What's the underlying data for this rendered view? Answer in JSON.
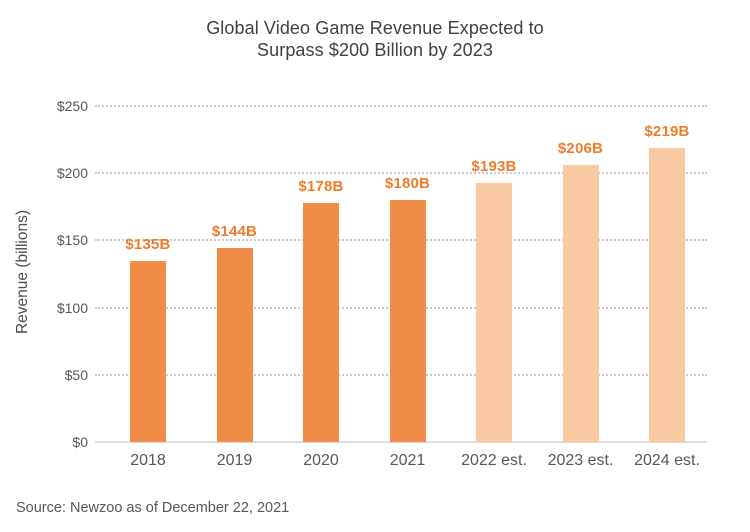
{
  "title": {
    "line1": "Global Video Game Revenue Expected to",
    "line2": "Surpass $200 Billion by 2023"
  },
  "y_axis_label": "Revenue (billions)",
  "source_note": "Source: Newzoo as of December 22, 2021",
  "chart_data": {
    "type": "bar",
    "title": "Global Video Game Revenue Expected to Surpass $200 Billion by 2023",
    "xlabel": "",
    "ylabel": "Revenue (billions)",
    "categories": [
      "2018",
      "2019",
      "2020",
      "2021",
      "2022 est.",
      "2023 est.",
      "2024 est."
    ],
    "values": [
      135,
      144,
      178,
      180,
      193,
      206,
      219
    ],
    "bar_labels": [
      "$135B",
      "$144B",
      "$178B",
      "$180B",
      "$193B",
      "$206B",
      "$219B"
    ],
    "estimated": [
      false,
      false,
      false,
      false,
      true,
      true,
      true
    ],
    "ylim": [
      0,
      250
    ],
    "ytick_step": 50,
    "ytick_labels": [
      "$0",
      "$50",
      "$100",
      "$150",
      "$200",
      "$250"
    ],
    "grid": "horizontal-dotted",
    "legend": "none",
    "colors": {
      "actual_bar": "#F08C46",
      "estimated_bar": "#F9C9A1",
      "value_label": "#ED7D2D",
      "title_text": "#414141",
      "axis_text": "#575757",
      "gridline": "#c9c9c9",
      "baseline": "#dcdcdc",
      "background": "#ffffff"
    }
  }
}
